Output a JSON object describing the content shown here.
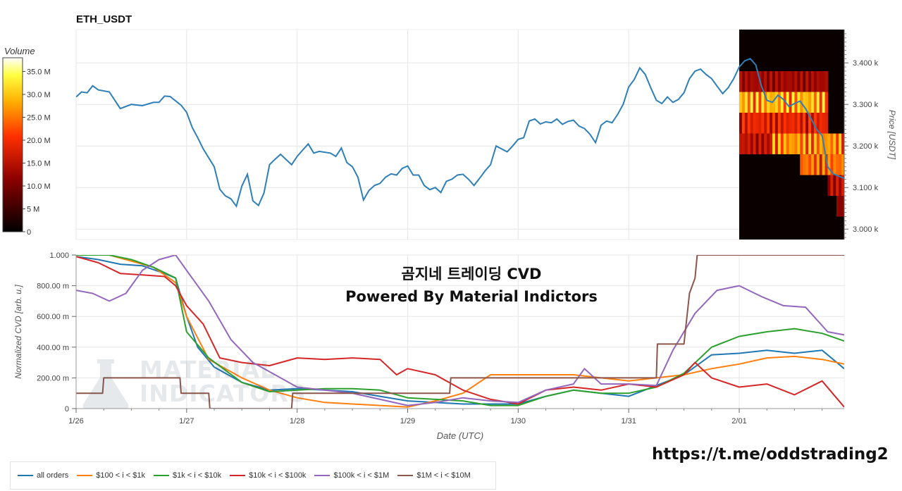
{
  "chart_data": [
    {
      "type": "line",
      "title": "ETH_USDT",
      "ylabel": "Price [USDT]",
      "ylim": [
        2975,
        3480
      ],
      "yticks": [
        {
          "value": 3000,
          "label": "3.000 k"
        },
        {
          "value": 3100,
          "label": "3.100 k"
        },
        {
          "value": 3200,
          "label": "3.200 k"
        },
        {
          "value": 3300,
          "label": "3.300 k"
        },
        {
          "value": 3400,
          "label": "3.400 k"
        }
      ],
      "x_days": [
        0,
        0.05,
        0.1,
        0.15,
        0.2,
        0.3,
        0.35,
        0.4,
        0.5,
        0.6,
        0.7,
        0.75,
        0.8,
        0.85,
        0.95,
        1.0,
        1.05,
        1.1,
        1.15,
        1.25,
        1.3,
        1.35,
        1.4,
        1.45,
        1.5,
        1.55,
        1.6,
        1.65,
        1.7,
        1.75,
        1.8,
        1.85,
        1.95,
        2.0,
        2.05,
        2.1,
        2.15,
        2.2,
        2.3,
        2.35,
        2.4,
        2.45,
        2.5,
        2.55,
        2.6,
        2.65,
        2.7,
        2.75,
        2.8,
        2.85,
        2.9,
        2.95,
        3.0,
        3.05,
        3.1,
        3.15,
        3.2,
        3.25,
        3.3,
        3.35,
        3.4,
        3.45,
        3.5,
        3.55,
        3.6,
        3.65,
        3.7,
        3.75,
        3.8,
        3.85,
        3.9,
        3.95,
        4.0,
        4.05,
        4.1,
        4.15,
        4.2,
        4.25,
        4.3,
        4.35,
        4.4,
        4.45,
        4.5,
        4.55,
        4.6,
        4.65,
        4.7,
        4.75,
        4.8,
        4.85,
        4.9,
        4.95,
        5.0,
        5.05,
        5.1,
        5.15,
        5.2,
        5.25,
        5.3,
        5.35,
        5.4,
        5.45,
        5.5,
        5.55,
        5.6,
        5.65,
        5.7,
        5.75,
        5.8,
        5.85,
        5.9,
        5.95,
        6.0,
        6.05,
        6.1,
        6.15,
        6.2,
        6.25,
        6.3,
        6.35,
        6.4,
        6.45,
        6.5,
        6.55,
        6.6,
        6.65,
        6.7,
        6.75,
        6.8,
        6.85,
        6.95
      ],
      "price": [
        3318,
        3330,
        3328,
        3345,
        3335,
        3330,
        3310,
        3290,
        3300,
        3297,
        3305,
        3305,
        3320,
        3319,
        3298,
        3281,
        3245,
        3220,
        3193,
        3150,
        3096,
        3080,
        3073,
        3055,
        3104,
        3132,
        3068,
        3057,
        3087,
        3155,
        3168,
        3180,
        3155,
        3175,
        3190,
        3205,
        3183,
        3187,
        3183,
        3175,
        3195,
        3160,
        3150,
        3125,
        3070,
        3093,
        3105,
        3110,
        3125,
        3133,
        3130,
        3146,
        3152,
        3130,
        3130,
        3105,
        3095,
        3100,
        3088,
        3115,
        3120,
        3130,
        3132,
        3120,
        3105,
        3122,
        3140,
        3155,
        3200,
        3193,
        3186,
        3200,
        3216,
        3220,
        3260,
        3265,
        3253,
        3258,
        3256,
        3265,
        3252,
        3259,
        3262,
        3248,
        3242,
        3228,
        3208,
        3250,
        3260,
        3256,
        3276,
        3300,
        3342,
        3360,
        3388,
        3372,
        3340,
        3310,
        3302,
        3318,
        3305,
        3312,
        3328,
        3362,
        3380,
        3385,
        3372,
        3362,
        3344,
        3326,
        3340,
        3362,
        3390,
        3405,
        3410,
        3395,
        3345,
        3310,
        3305,
        3322,
        3312,
        3295,
        3302,
        3308,
        3290,
        3266,
        3240,
        3225,
        3150,
        3133,
        3122
      ]
    },
    {
      "type": "line",
      "xlabel": "Date (UTC)",
      "ylabel": "Normalized CVD [arb. u.]",
      "ylim": [
        0,
        1
      ],
      "yticks": [
        {
          "value": 0,
          "label": "0"
        },
        {
          "value": 0.2,
          "label": "200.00 m"
        },
        {
          "value": 0.4,
          "label": "400.00 m"
        },
        {
          "value": 0.6,
          "label": "600.00 m"
        },
        {
          "value": 0.8,
          "label": "800.00 m"
        },
        {
          "value": 1.0,
          "label": "1.000"
        }
      ],
      "xticks": [
        {
          "value": 0,
          "label": "1/26"
        },
        {
          "value": 1,
          "label": "1/27"
        },
        {
          "value": 2,
          "label": "1/28"
        },
        {
          "value": 3,
          "label": "1/29"
        },
        {
          "value": 4,
          "label": "1/30"
        },
        {
          "value": 5,
          "label": "1/31"
        },
        {
          "value": 6,
          "label": "2/01"
        }
      ],
      "annotation": [
        "곰지네 트레이딩 CVD",
        "Powered By Material Indictors"
      ],
      "series": [
        {
          "name": "all orders",
          "color": "#1f77b4",
          "x": [
            0,
            0.2,
            0.4,
            0.6,
            0.8,
            0.9,
            1.0,
            1.1,
            1.25,
            1.5,
            1.75,
            2.0,
            2.25,
            2.5,
            2.75,
            3.0,
            3.25,
            3.5,
            3.75,
            4.0,
            4.25,
            4.5,
            4.75,
            5.0,
            5.25,
            5.5,
            5.75,
            6.0,
            6.25,
            6.5,
            6.75,
            6.95
          ],
          "values": [
            0.99,
            0.97,
            0.94,
            0.93,
            0.88,
            0.85,
            0.6,
            0.4,
            0.27,
            0.17,
            0.12,
            0.13,
            0.12,
            0.11,
            0.08,
            0.05,
            0.04,
            0.03,
            0.03,
            0.03,
            0.08,
            0.12,
            0.1,
            0.08,
            0.15,
            0.22,
            0.35,
            0.36,
            0.38,
            0.36,
            0.38,
            0.26
          ]
        },
        {
          "name": "$100 < i < $1k",
          "color": "#ff7f0e",
          "x": [
            0,
            0.3,
            0.5,
            0.7,
            0.9,
            1.0,
            1.2,
            1.5,
            1.75,
            2.0,
            2.25,
            2.5,
            2.75,
            3.0,
            3.25,
            3.5,
            3.75,
            4.0,
            4.25,
            4.5,
            4.75,
            5.0,
            5.25,
            5.5,
            5.75,
            6.0,
            6.25,
            6.5,
            6.75,
            6.95
          ],
          "values": [
            1.0,
            1.0,
            0.96,
            0.92,
            0.82,
            0.6,
            0.32,
            0.2,
            0.12,
            0.07,
            0.04,
            0.03,
            0.02,
            0.01,
            0.05,
            0.1,
            0.22,
            0.22,
            0.22,
            0.22,
            0.2,
            0.18,
            0.2,
            0.22,
            0.26,
            0.29,
            0.33,
            0.34,
            0.32,
            0.29
          ]
        },
        {
          "name": "$1k < i < $10k",
          "color": "#2ca02c",
          "x": [
            0,
            0.3,
            0.5,
            0.7,
            0.9,
            1.0,
            1.2,
            1.5,
            1.75,
            2.0,
            2.25,
            2.5,
            2.75,
            3.0,
            3.25,
            3.5,
            3.75,
            4.0,
            4.25,
            4.5,
            4.75,
            5.0,
            5.25,
            5.5,
            5.75,
            6.0,
            6.25,
            6.5,
            6.75,
            6.95
          ],
          "values": [
            1.0,
            1.0,
            0.97,
            0.92,
            0.85,
            0.5,
            0.33,
            0.17,
            0.11,
            0.12,
            0.13,
            0.13,
            0.12,
            0.07,
            0.06,
            0.05,
            0.02,
            0.02,
            0.08,
            0.12,
            0.1,
            0.1,
            0.14,
            0.23,
            0.4,
            0.47,
            0.5,
            0.52,
            0.49,
            0.44
          ]
        },
        {
          "name": "$10k < i < $100k",
          "color": "#d62728",
          "x": [
            0,
            0.2,
            0.4,
            0.6,
            0.8,
            0.9,
            1.0,
            1.15,
            1.3,
            1.5,
            1.75,
            2.0,
            2.25,
            2.5,
            2.75,
            2.9,
            3.0,
            3.25,
            3.5,
            3.75,
            4.0,
            4.25,
            4.5,
            4.75,
            5.0,
            5.25,
            5.5,
            5.6,
            5.75,
            6.0,
            6.25,
            6.5,
            6.75,
            6.95
          ],
          "values": [
            0.99,
            0.95,
            0.88,
            0.87,
            0.86,
            0.8,
            0.67,
            0.55,
            0.33,
            0.3,
            0.28,
            0.33,
            0.32,
            0.33,
            0.32,
            0.22,
            0.26,
            0.22,
            0.12,
            0.06,
            0.03,
            0.12,
            0.14,
            0.12,
            0.16,
            0.14,
            0.22,
            0.3,
            0.2,
            0.14,
            0.16,
            0.09,
            0.18,
            0.01
          ]
        },
        {
          "name": "$100k < i < $1M",
          "color": "#9467bd",
          "x": [
            0,
            0.15,
            0.3,
            0.45,
            0.6,
            0.75,
            0.9,
            1.0,
            1.2,
            1.4,
            1.6,
            1.8,
            2.0,
            2.25,
            2.5,
            2.75,
            3.0,
            3.25,
            3.5,
            3.75,
            4.0,
            4.25,
            4.5,
            4.6,
            4.75,
            5.0,
            5.25,
            5.4,
            5.6,
            5.8,
            6.0,
            6.2,
            6.4,
            6.6,
            6.8,
            6.95
          ],
          "values": [
            0.77,
            0.75,
            0.7,
            0.75,
            0.9,
            0.97,
            1.0,
            0.9,
            0.7,
            0.45,
            0.3,
            0.22,
            0.14,
            0.12,
            0.1,
            0.06,
            0.02,
            0.04,
            0.07,
            0.05,
            0.04,
            0.12,
            0.16,
            0.26,
            0.16,
            0.16,
            0.15,
            0.38,
            0.62,
            0.77,
            0.8,
            0.73,
            0.67,
            0.66,
            0.5,
            0.48
          ]
        },
        {
          "name": "$1M < i < $10M",
          "color": "#8c564b",
          "x": [
            0,
            0.24,
            0.25,
            0.94,
            0.95,
            1.2,
            1.21,
            1.95,
            1.96,
            3.38,
            3.39,
            5.25,
            5.26,
            5.5,
            5.55,
            5.6,
            5.62,
            6.95
          ],
          "values": [
            0.1,
            0.1,
            0.2,
            0.2,
            0.1,
            0.1,
            0.0,
            0.0,
            0.1,
            0.1,
            0.2,
            0.2,
            0.42,
            0.42,
            0.75,
            0.85,
            1.0,
            1.0
          ]
        }
      ]
    },
    {
      "type": "heatmap",
      "colorbar_title": "Volume",
      "colorbar_ticks": [
        {
          "value": 0,
          "label": "0"
        },
        {
          "value": 5,
          "label": "5 M"
        },
        {
          "value": 10,
          "label": "10.0 M"
        },
        {
          "value": 15,
          "label": "15.0 M"
        },
        {
          "value": 20,
          "label": "20.0 M"
        },
        {
          "value": 25,
          "label": "25.0 M"
        },
        {
          "value": 30,
          "label": "30.0 M"
        },
        {
          "value": 35,
          "label": "35.0 M"
        }
      ],
      "vmax": 38,
      "bands": [
        {
          "p0": 3330,
          "p1": 3380,
          "x0": 6.0,
          "x1": 6.8,
          "v": 12
        },
        {
          "p0": 3280,
          "p1": 3330,
          "x0": 6.0,
          "x1": 6.8,
          "v": 26
        },
        {
          "p0": 3230,
          "p1": 3280,
          "x0": 6.0,
          "x1": 6.8,
          "v": 17
        },
        {
          "p0": 3180,
          "p1": 3230,
          "x0": 6.0,
          "x1": 6.8,
          "v": 14
        },
        {
          "p0": 3180,
          "p1": 3230,
          "x0": 6.3,
          "x1": 6.95,
          "v": 24
        },
        {
          "p0": 3130,
          "p1": 3180,
          "x0": 6.55,
          "x1": 6.95,
          "v": 22
        },
        {
          "p0": 3080,
          "p1": 3130,
          "x0": 6.8,
          "x1": 6.95,
          "v": 14
        },
        {
          "p0": 3030,
          "p1": 3080,
          "x0": 6.88,
          "x1": 6.95,
          "v": 10
        }
      ]
    }
  ],
  "legend": [
    {
      "label": "all orders",
      "color": "#1f77b4"
    },
    {
      "label": "$100 < i < $1k",
      "color": "#ff7f0e"
    },
    {
      "label": "$1k < i < $10k",
      "color": "#2ca02c"
    },
    {
      "label": "$10k < i < $100k",
      "color": "#d62728"
    },
    {
      "label": "$100k < i < $1M",
      "color": "#9467bd"
    },
    {
      "label": "$1M < i < $10M",
      "color": "#8c564b"
    }
  ],
  "watermark": {
    "line1": "MATERIAL",
    "line2": "INDICATORS"
  },
  "footer_url": "https://t.me/oddstrading2",
  "colors": {
    "price_line": "#2e7fb8",
    "grid": "#e5e5e5",
    "axis": "#999999"
  }
}
